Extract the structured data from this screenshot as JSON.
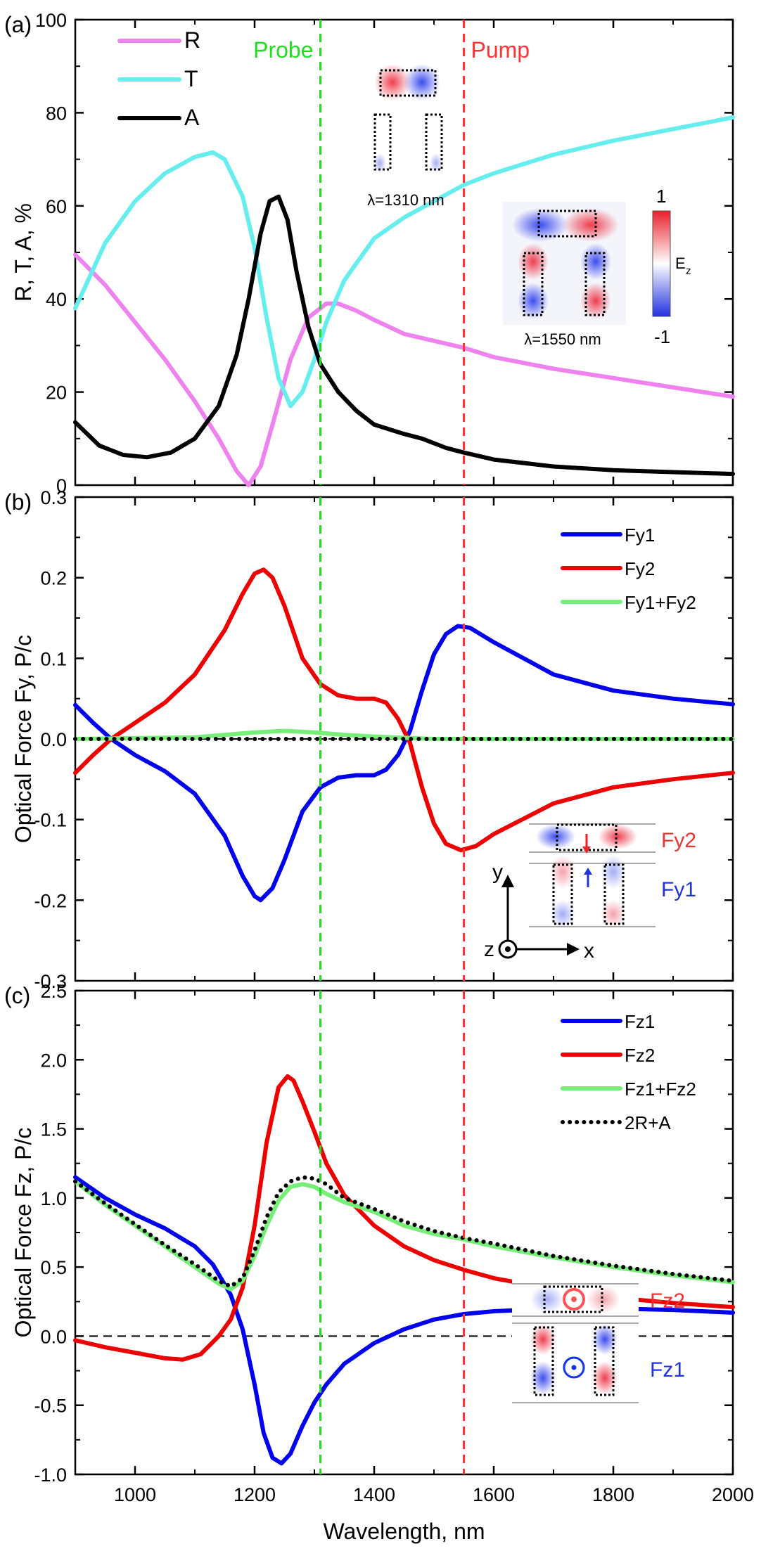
{
  "chart_data": [
    {
      "panel_label": "(a)",
      "type": "line",
      "ylabel": "R, T, A, %",
      "xlim": [
        900,
        2000
      ],
      "ylim": [
        0,
        100
      ],
      "yticks": [
        0,
        20,
        40,
        60,
        80,
        100
      ],
      "ytick_labels": [
        "0",
        "20",
        "40",
        "60",
        "80",
        "100"
      ],
      "series": [
        {
          "name": "R",
          "color": "#ee82ee",
          "x": [
            900,
            950,
            1000,
            1050,
            1100,
            1140,
            1170,
            1190,
            1210,
            1230,
            1260,
            1290,
            1320,
            1340,
            1370,
            1400,
            1450,
            1500,
            1550,
            1600,
            1700,
            1800,
            1900,
            2000
          ],
          "y": [
            49.5,
            43,
            35,
            27,
            18,
            10,
            3,
            0,
            4,
            13,
            27,
            36,
            39,
            39,
            37.5,
            35.5,
            32.5,
            31,
            29.5,
            27.5,
            25,
            23,
            21,
            19
          ]
        },
        {
          "name": "T",
          "color": "#66eeee",
          "x": [
            900,
            950,
            1000,
            1050,
            1100,
            1130,
            1150,
            1180,
            1200,
            1220,
            1240,
            1260,
            1280,
            1300,
            1320,
            1350,
            1400,
            1450,
            1500,
            1550,
            1600,
            1700,
            1800,
            1900,
            2000
          ],
          "y": [
            38,
            52,
            61,
            67,
            70.5,
            71.5,
            70,
            62,
            51,
            36,
            23,
            17,
            20,
            27,
            35,
            44,
            53,
            57.5,
            61,
            64.5,
            67,
            71,
            74,
            76.5,
            79
          ]
        },
        {
          "name": "A",
          "color": "#000000",
          "x": [
            900,
            940,
            980,
            1020,
            1060,
            1100,
            1140,
            1170,
            1190,
            1210,
            1225,
            1240,
            1255,
            1270,
            1290,
            1310,
            1340,
            1370,
            1400,
            1450,
            1480,
            1520,
            1550,
            1600,
            1700,
            1800,
            1900,
            2000
          ],
          "y": [
            13.5,
            8.5,
            6.5,
            6,
            7,
            10,
            17,
            28,
            40,
            54,
            61,
            62,
            57,
            46,
            34,
            26,
            20,
            16,
            13,
            11,
            10,
            8,
            7,
            5.5,
            4,
            3.2,
            2.8,
            2.4
          ]
        }
      ],
      "vlines": [
        {
          "x": 1310,
          "label": "Probe",
          "color": "#22dd22"
        },
        {
          "x": 1550,
          "label": "Pump",
          "color": "#ff3333"
        }
      ],
      "annotations": [
        "λ=1310 nm",
        "λ=1550 nm",
        "1",
        "-1",
        "E",
        "z"
      ]
    },
    {
      "panel_label": "(b)",
      "type": "line",
      "ylabel": "Optical Force Fy, P/c",
      "xlim": [
        900,
        2000
      ],
      "ylim": [
        -0.3,
        0.3
      ],
      "yticks": [
        -0.3,
        -0.2,
        -0.1,
        0.0,
        0.1,
        0.2,
        0.3
      ],
      "ytick_labels": [
        "-0.3",
        "-0.2",
        "-0.1",
        "0.0",
        "0.1",
        "0.2",
        "0.3"
      ],
      "series": [
        {
          "name": "Fy1",
          "color": "#0000ee",
          "x": [
            900,
            930,
            960,
            1000,
            1050,
            1100,
            1150,
            1180,
            1200,
            1210,
            1230,
            1250,
            1280,
            1310,
            1340,
            1370,
            1400,
            1420,
            1440,
            1460,
            1480,
            1500,
            1520,
            1540,
            1560,
            1600,
            1700,
            1800,
            1900,
            2000
          ],
          "y": [
            0.042,
            0.02,
            0.0,
            -0.02,
            -0.04,
            -0.068,
            -0.12,
            -0.17,
            -0.195,
            -0.2,
            -0.185,
            -0.15,
            -0.09,
            -0.06,
            -0.048,
            -0.045,
            -0.045,
            -0.038,
            -0.02,
            0.01,
            0.06,
            0.105,
            0.13,
            0.14,
            0.138,
            0.12,
            0.08,
            0.06,
            0.05,
            0.043
          ]
        },
        {
          "name": "Fy2",
          "color": "#ee0000",
          "x": [
            900,
            930,
            960,
            1000,
            1050,
            1100,
            1150,
            1180,
            1200,
            1215,
            1230,
            1250,
            1280,
            1310,
            1340,
            1370,
            1400,
            1420,
            1440,
            1460,
            1480,
            1500,
            1520,
            1545,
            1570,
            1600,
            1700,
            1800,
            1900,
            2000
          ],
          "y": [
            -0.042,
            -0.02,
            0.0,
            0.02,
            0.045,
            0.08,
            0.135,
            0.18,
            0.205,
            0.21,
            0.2,
            0.165,
            0.1,
            0.068,
            0.054,
            0.05,
            0.05,
            0.045,
            0.025,
            -0.005,
            -0.06,
            -0.105,
            -0.13,
            -0.138,
            -0.133,
            -0.118,
            -0.08,
            -0.06,
            -0.05,
            -0.042
          ]
        },
        {
          "name": "Fy1+Fy2",
          "color": "#77ee77",
          "x": [
            900,
            1100,
            1200,
            1250,
            1300,
            1350,
            1400,
            1500,
            2000
          ],
          "y": [
            0.0,
            0.002,
            0.008,
            0.01,
            0.008,
            0.005,
            0.003,
            0.0,
            0.0
          ]
        }
      ],
      "zero_line": {
        "y": 0.0
      },
      "annotations": [
        "Fy2",
        "Fy1",
        "y",
        "z",
        "x"
      ]
    },
    {
      "panel_label": "(c)",
      "type": "line",
      "ylabel": "Optical Force Fz, P/c",
      "xlabel": "Wavelength, nm",
      "xlim": [
        900,
        2000
      ],
      "xticks": [
        1000,
        1200,
        1400,
        1600,
        1800,
        2000
      ],
      "xtick_labels": [
        "1000",
        "1200",
        "1400",
        "1600",
        "1800",
        "2000"
      ],
      "ylim": [
        -1.0,
        2.5
      ],
      "yticks": [
        -1.0,
        -0.5,
        0.0,
        0.5,
        1.0,
        1.5,
        2.0,
        2.5
      ],
      "ytick_labels": [
        "-1.0",
        "-0.5",
        "0.0",
        "0.5",
        "1.0",
        "1.5",
        "2.0",
        "2.5"
      ],
      "series": [
        {
          "name": "Fz1",
          "color": "#0000ee",
          "x": [
            900,
            950,
            1000,
            1050,
            1100,
            1130,
            1160,
            1180,
            1200,
            1215,
            1230,
            1245,
            1260,
            1280,
            1300,
            1320,
            1350,
            1400,
            1450,
            1500,
            1550,
            1600,
            1700,
            1800,
            1900,
            2000
          ],
          "y": [
            1.15,
            1.0,
            0.88,
            0.78,
            0.65,
            0.52,
            0.3,
            0.05,
            -0.35,
            -0.7,
            -0.88,
            -0.92,
            -0.85,
            -0.65,
            -0.48,
            -0.35,
            -0.2,
            -0.05,
            0.05,
            0.12,
            0.16,
            0.18,
            0.2,
            0.2,
            0.19,
            0.17
          ]
        },
        {
          "name": "Fz2",
          "color": "#ee0000",
          "x": [
            900,
            950,
            1000,
            1050,
            1080,
            1110,
            1140,
            1160,
            1180,
            1200,
            1220,
            1240,
            1255,
            1265,
            1280,
            1300,
            1320,
            1350,
            1400,
            1450,
            1500,
            1550,
            1600,
            1700,
            1800,
            1900,
            2000
          ],
          "y": [
            -0.03,
            -0.08,
            -0.12,
            -0.16,
            -0.17,
            -0.13,
            0.0,
            0.12,
            0.35,
            0.8,
            1.4,
            1.8,
            1.88,
            1.85,
            1.7,
            1.48,
            1.25,
            1.02,
            0.8,
            0.65,
            0.55,
            0.48,
            0.42,
            0.34,
            0.28,
            0.24,
            0.21
          ]
        },
        {
          "name": "Fz1+Fz2",
          "color": "#77ee77",
          "x": [
            900,
            950,
            1000,
            1050,
            1100,
            1140,
            1160,
            1180,
            1200,
            1220,
            1240,
            1260,
            1280,
            1300,
            1320,
            1350,
            1400,
            1450,
            1500,
            1550,
            1600,
            1700,
            1800,
            1900,
            2000
          ],
          "y": [
            1.12,
            0.95,
            0.8,
            0.65,
            0.5,
            0.38,
            0.34,
            0.4,
            0.58,
            0.8,
            0.98,
            1.08,
            1.1,
            1.08,
            1.03,
            0.97,
            0.9,
            0.8,
            0.74,
            0.7,
            0.65,
            0.57,
            0.5,
            0.44,
            0.39
          ]
        },
        {
          "name": "2R+A",
          "color": "#000000",
          "dotted": true,
          "x": [
            900,
            950,
            1000,
            1050,
            1100,
            1140,
            1160,
            1180,
            1200,
            1220,
            1240,
            1260,
            1280,
            1300,
            1320,
            1350,
            1400,
            1450,
            1500,
            1550,
            1600,
            1700,
            1800,
            1900,
            2000
          ],
          "y": [
            1.12,
            0.96,
            0.81,
            0.66,
            0.52,
            0.4,
            0.36,
            0.42,
            0.62,
            0.86,
            1.04,
            1.12,
            1.15,
            1.14,
            1.1,
            1.0,
            0.92,
            0.83,
            0.76,
            0.71,
            0.67,
            0.58,
            0.51,
            0.45,
            0.4
          ]
        }
      ],
      "zero_line": {
        "y": 0.0
      },
      "annotations": [
        "Fz2",
        "Fz1"
      ]
    }
  ]
}
